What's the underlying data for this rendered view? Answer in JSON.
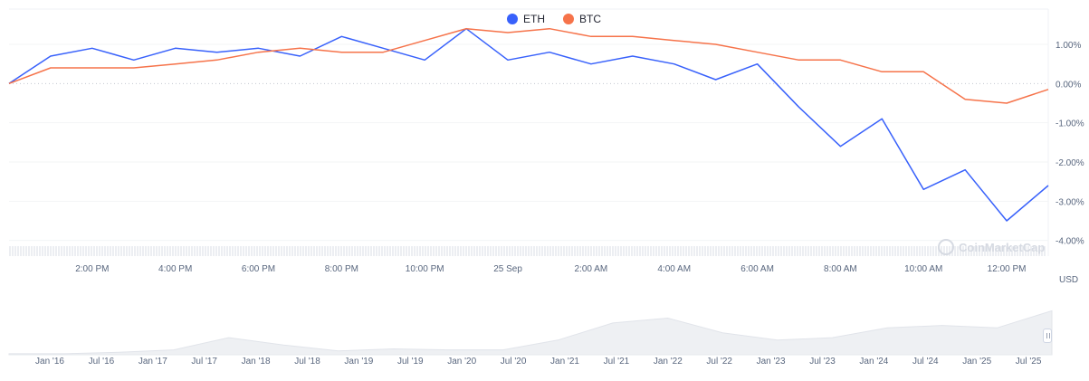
{
  "chart_data": {
    "type": "line",
    "y_unit": "USD",
    "y_ticks": [
      "1.00%",
      "0.00%",
      "-1.00%",
      "-2.00%",
      "-3.00%",
      "-4.00%"
    ],
    "ylim": [
      -4.4,
      1.9
    ],
    "x_tick_labels": [
      "2:00 PM",
      "4:00 PM",
      "6:00 PM",
      "8:00 PM",
      "10:00 PM",
      "25 Sep",
      "2:00 AM",
      "4:00 AM",
      "6:00 AM",
      "8:00 AM",
      "10:00 AM",
      "12:00 PM"
    ],
    "legend_position": "top-center",
    "grid": true,
    "x_hours": [
      0,
      1,
      2,
      3,
      4,
      5,
      6,
      7,
      8,
      9,
      10,
      11,
      12,
      13,
      14,
      15,
      16,
      17,
      18,
      19,
      20,
      21,
      22,
      23,
      24,
      25
    ],
    "series": [
      {
        "name": "ETH",
        "color": "#3861fb",
        "values": [
          0.0,
          0.7,
          0.9,
          0.6,
          0.9,
          0.8,
          0.9,
          0.7,
          1.2,
          0.9,
          0.6,
          1.4,
          0.6,
          0.8,
          0.5,
          0.7,
          0.5,
          0.1,
          0.5,
          -0.6,
          -1.6,
          -0.9,
          -2.7,
          -2.2,
          -3.5,
          -2.6
        ]
      },
      {
        "name": "BTC",
        "color": "#f6734a",
        "values": [
          0.0,
          0.4,
          0.4,
          0.4,
          0.5,
          0.6,
          0.8,
          0.9,
          0.8,
          0.8,
          1.1,
          1.4,
          1.3,
          1.4,
          1.2,
          1.2,
          1.1,
          1.0,
          0.8,
          0.6,
          0.6,
          0.3,
          0.3,
          -0.4,
          -0.5,
          -0.15
        ]
      }
    ]
  },
  "navigator": {
    "labels": [
      "Jan '16",
      "Jul '16",
      "Jan '17",
      "Jul '17",
      "Jan '18",
      "Jul '18",
      "Jan '19",
      "Jul '19",
      "Jan '20",
      "Jul '20",
      "Jan '21",
      "Jul '21",
      "Jan '22",
      "Jul '22",
      "Jan '23",
      "Jul '23",
      "Jan '24",
      "Jul '24",
      "Jan '25",
      "Jul '25"
    ],
    "history": [
      0.02,
      0.02,
      0.05,
      0.1,
      0.35,
      0.2,
      0.08,
      0.12,
      0.1,
      0.1,
      0.3,
      0.65,
      0.75,
      0.45,
      0.3,
      0.35,
      0.55,
      0.6,
      0.55,
      0.9
    ]
  },
  "legend": {
    "eth": "ETH",
    "btc": "BTC"
  },
  "watermark": "CoinMarketCap"
}
